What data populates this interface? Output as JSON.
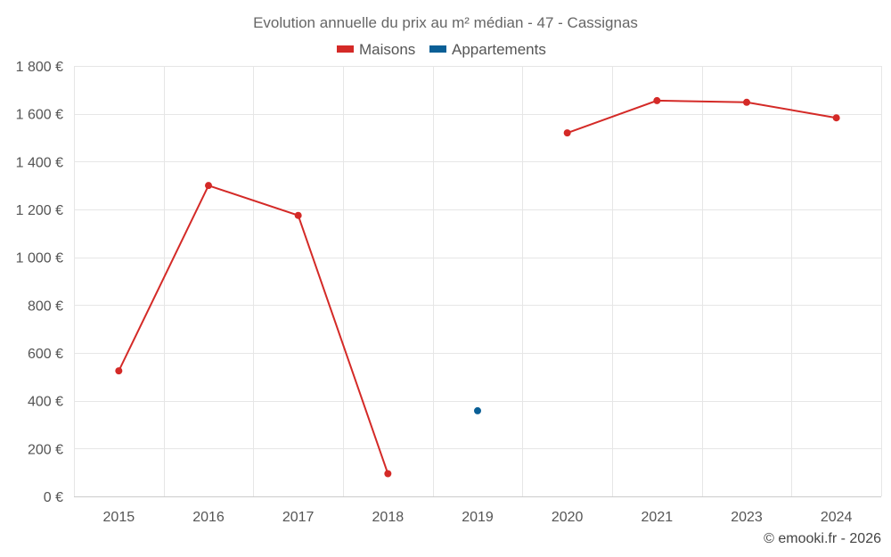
{
  "chart_data": {
    "type": "line",
    "title": "Evolution annuelle du prix au m² médian - 47 - Cassignas",
    "categories": [
      "2015",
      "2016",
      "2017",
      "2018",
      "2019",
      "2020",
      "2021",
      "2023",
      "2024"
    ],
    "series": [
      {
        "name": "Maisons",
        "color": "#d42a27",
        "values": [
          525,
          1300,
          1175,
          95,
          null,
          1520,
          1655,
          1648,
          1583
        ]
      },
      {
        "name": "Appartements",
        "color": "#0a5f96",
        "values": [
          null,
          null,
          null,
          null,
          358,
          null,
          null,
          null,
          null
        ]
      }
    ],
    "ylim": [
      0,
      1800
    ],
    "yticks": [
      0,
      200,
      400,
      600,
      800,
      1000,
      1200,
      1400,
      1600,
      1800
    ],
    "ytick_labels": [
      "0 €",
      "200 €",
      "400 €",
      "600 €",
      "800 €",
      "1 000 €",
      "1 200 €",
      "1 400 €",
      "1 600 €",
      "1 800 €"
    ],
    "xlabel": "",
    "ylabel": "",
    "grid": true,
    "legend": "top-center"
  },
  "credit": "© emooki.fr - 2026"
}
